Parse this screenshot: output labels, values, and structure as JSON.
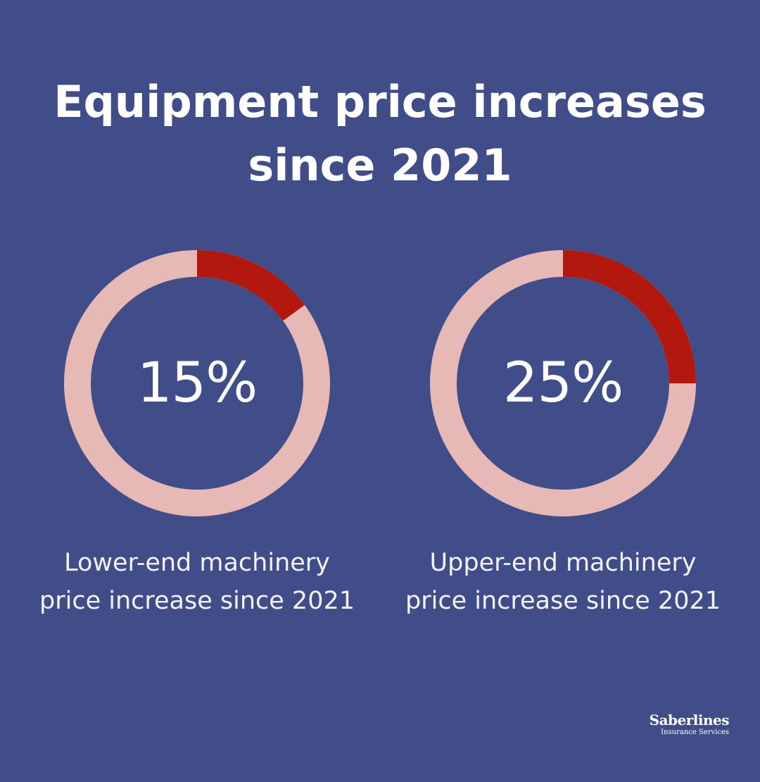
{
  "colors": {
    "background": "#414d88",
    "accent": "#b3180e",
    "track": "#e7b9b6",
    "text": "#ffffff"
  },
  "title": {
    "line1": "Equipment price increases",
    "line2": "since 2021"
  },
  "chart_data": [
    {
      "type": "pie",
      "value": 15,
      "value_label": "15%",
      "caption_line1": "Lower-end machinery",
      "caption_line2": "price increase since 2021"
    },
    {
      "type": "pie",
      "value": 25,
      "value_label": "25%",
      "caption_line1": "Upper-end machinery",
      "caption_line2": "price increase since 2021"
    }
  ],
  "logo": {
    "name": "Saberlines",
    "subtitle": "Insurance Services"
  }
}
